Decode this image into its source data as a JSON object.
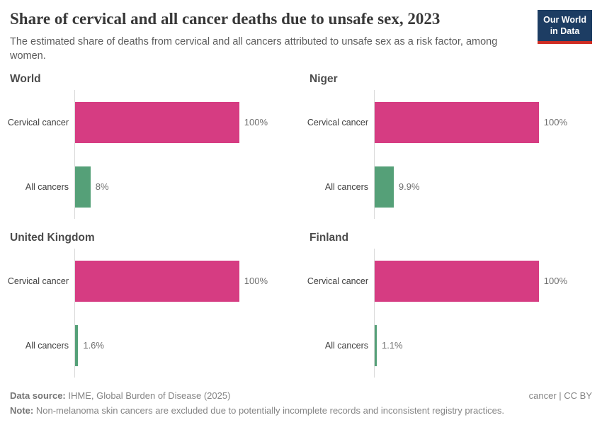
{
  "header": {
    "title": "Share of cervical and all cancer deaths due to unsafe sex, 2023",
    "subtitle": "The estimated share of deaths from cervical and all cancers attributed to unsafe sex as a risk factor, among women.",
    "logo": {
      "line1": "Our World",
      "line2": "in Data",
      "bg_color": "#1d3d63",
      "accent_color": "#cf2d23"
    }
  },
  "chart_data": {
    "type": "bar",
    "orientation": "horizontal",
    "title": "Share of cervical and all cancer deaths due to unsafe sex, 2023",
    "subtitle": "The estimated share of deaths from cervical and all cancers attributed to unsafe sex as a risk factor, among women.",
    "categories": [
      "Cervical cancer",
      "All cancers"
    ],
    "unit": "%",
    "xlim": [
      0,
      100
    ],
    "grid": false,
    "legend": "none",
    "series_colors": {
      "cervical_cancer": "#d63c82",
      "all_cancers": "#55a078"
    },
    "panels": [
      {
        "title": "World",
        "bars": [
          {
            "label": "Cervical cancer",
            "value": 100,
            "value_label": "100%",
            "color": "#d63c82"
          },
          {
            "label": "All cancers",
            "value": 8,
            "value_label": "8%",
            "color": "#55a078"
          }
        ]
      },
      {
        "title": "Niger",
        "bars": [
          {
            "label": "Cervical cancer",
            "value": 100,
            "value_label": "100%",
            "color": "#d63c82"
          },
          {
            "label": "All cancers",
            "value": 9.9,
            "value_label": "9.9%",
            "color": "#55a078"
          }
        ]
      },
      {
        "title": "United Kingdom",
        "bars": [
          {
            "label": "Cervical cancer",
            "value": 100,
            "value_label": "100%",
            "color": "#d63c82"
          },
          {
            "label": "All cancers",
            "value": 1.6,
            "value_label": "1.6%",
            "color": "#55a078"
          }
        ]
      },
      {
        "title": "Finland",
        "bars": [
          {
            "label": "Cervical cancer",
            "value": 100,
            "value_label": "100%",
            "color": "#d63c82"
          },
          {
            "label": "All cancers",
            "value": 1.1,
            "value_label": "1.1%",
            "color": "#55a078"
          }
        ]
      }
    ]
  },
  "footer": {
    "data_source_label": "Data source:",
    "data_source": "IHME, Global Burden of Disease (2025)",
    "note_label": "Note:",
    "note": "Non-melanoma skin cancers are excluded due to potentially incomplete records and inconsistent registry practices.",
    "license": "cancer | CC BY"
  },
  "colors": {
    "axis_line": "#d9d9d9",
    "title_text": "#383838",
    "subtitle_text": "#5c5c5c"
  }
}
